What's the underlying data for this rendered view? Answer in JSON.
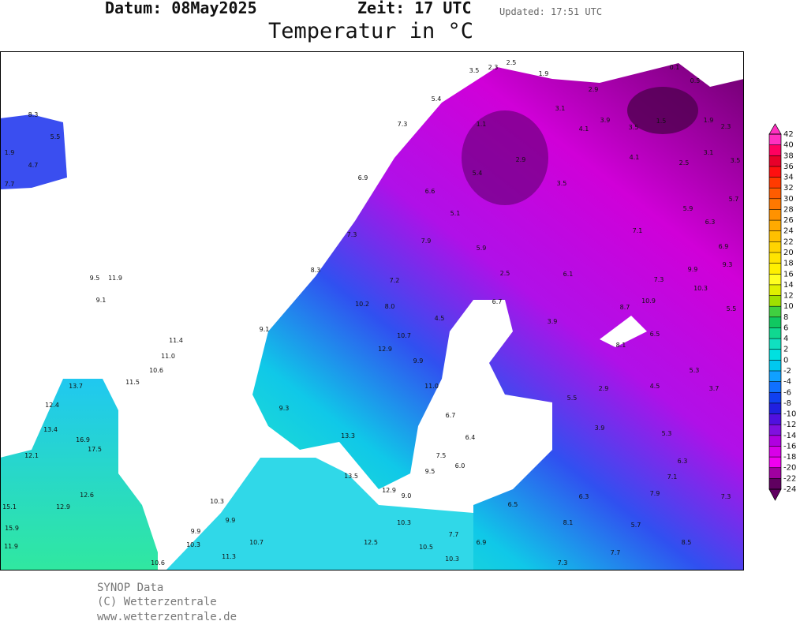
{
  "header": {
    "date": "Datum: 08May2025",
    "time": "Zeit: 17 UTC",
    "updated": "Updated: 17:51 UTC",
    "title": "Temperatur in °C"
  },
  "legend": {
    "ticks": [
      42,
      40,
      38,
      36,
      34,
      32,
      30,
      28,
      26,
      24,
      22,
      20,
      18,
      16,
      14,
      12,
      10,
      8,
      6,
      4,
      2,
      0,
      -2,
      -4,
      -6,
      -8,
      -10,
      -12,
      -14,
      -16,
      -18,
      -20,
      -22,
      -24
    ],
    "colors": [
      "#ff30c0",
      "#ff0060",
      "#e8002a",
      "#ff1010",
      "#ff3a00",
      "#ff5c00",
      "#ff7800",
      "#ff9200",
      "#ffaa00",
      "#ffc000",
      "#ffd400",
      "#ffe400",
      "#fff000",
      "#ffff20",
      "#e0f000",
      "#a0e000",
      "#40d040",
      "#10c860",
      "#10d890",
      "#10e0c0",
      "#00e0e0",
      "#00c8f0",
      "#10a0ff",
      "#1070ff",
      "#1040f0",
      "#2020e0",
      "#5010e0",
      "#8010e0",
      "#b000e0",
      "#d800e8",
      "#f000f0",
      "#a000a0",
      "#600060"
    ]
  },
  "stations": [
    "3.5",
    "2.3",
    "2.5",
    "1.9",
    "2.9",
    "0.1",
    "0.5",
    "1.5",
    "1.9",
    "2.3",
    "3.1",
    "4.1",
    "3.9",
    "3.5",
    "4.1",
    "2.5",
    "3.1",
    "3.5",
    "5.7",
    "6.3",
    "6.9",
    "9.3",
    "5.5",
    "10.3",
    "9.9",
    "7.3",
    "10.9",
    "8.7",
    "5.5",
    "8.3",
    "1.9",
    "4.7",
    "7.7",
    "9.5",
    "11.9",
    "9.1",
    "11.4",
    "11.0",
    "10.6",
    "11.5",
    "13.7",
    "12.4",
    "13.4",
    "12.1",
    "15.1",
    "15.9",
    "11.9",
    "10.3",
    "9.9",
    "9.9",
    "10.3",
    "10.7",
    "11.3",
    "13.5",
    "13.3",
    "12.9",
    "9.0",
    "10.3",
    "9.5",
    "7.5",
    "6.0",
    "6.4",
    "6.7",
    "11.0",
    "9.9",
    "10.7",
    "12.9",
    "10.2",
    "8.0",
    "7.2",
    "4.5",
    "5.9",
    "5.1",
    "2.5",
    "6.1",
    "6.7",
    "3.9",
    "8.1",
    "6.5",
    "5.3",
    "3.7",
    "4.5",
    "2.9",
    "5.5",
    "3.9",
    "5.3",
    "6.3",
    "7.1",
    "7.3",
    "7.9",
    "6.3",
    "6.5",
    "8.1",
    "5.7",
    "8.5",
    "7.7",
    "6.9",
    "7.7",
    "10.5",
    "10.3",
    "7.3",
    "12.5",
    "10.6",
    "12.6",
    "12.9",
    "16.9",
    "17.5",
    "9.3",
    "9.1",
    "8.3",
    "7.3",
    "6.9",
    "7.3",
    "5.4",
    "1.1",
    "2.9",
    "3.5",
    "5.4",
    "6.6",
    "7.9",
    "7.1",
    "5.9"
  ],
  "footer": {
    "source": "SYNOP Data",
    "copyright": "(C) Wetterzentrale",
    "url": "www.wetterzentrale.de"
  }
}
